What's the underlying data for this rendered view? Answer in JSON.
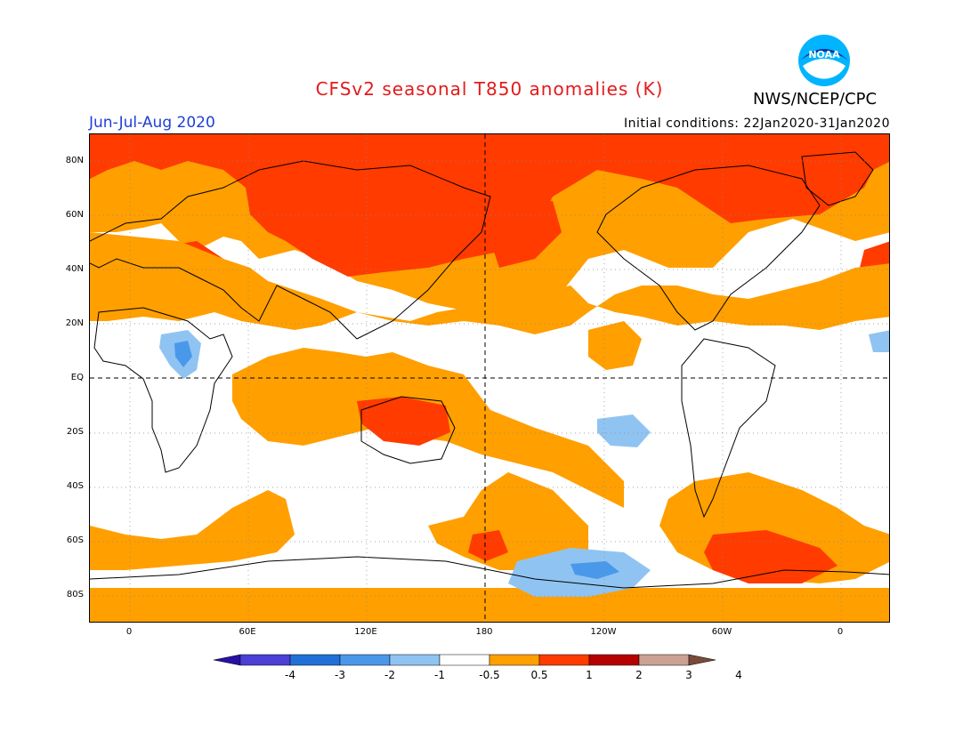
{
  "title": "CFSv2 seasonal T850 anomalies (K)",
  "season": "Jun-Jul-Aug 2020",
  "initial_conditions": "Initial conditions: 22Jan2020-31Jan2020",
  "agency": "NWS/NCEP/CPC",
  "logo_text": "NOAA",
  "lat_labels": [
    "80N",
    "60N",
    "40N",
    "20N",
    "EQ",
    "20S",
    "40S",
    "60S",
    "80S"
  ],
  "lon_labels": [
    "0",
    "60E",
    "120E",
    "180",
    "120W",
    "60W",
    "0"
  ],
  "colorbar": {
    "labels": [
      "-4",
      "-3",
      "-2",
      "-1",
      "-0.5",
      "0.5",
      "1",
      "2",
      "3",
      "4"
    ],
    "colors": [
      "#2a0fa6",
      "#4b3fd6",
      "#2070d8",
      "#4a98ea",
      "#8fc4f2",
      "#ffffff",
      "#ff9f00",
      "#ff3b00",
      "#b50000",
      "#c9a293",
      "#7a4a3a"
    ]
  },
  "colors": {
    "warm_05_1": "#ff9f00",
    "warm_1_2": "#ff3b00",
    "cool_05_1": "#8fc4f2",
    "cool_1_2": "#4a98ea",
    "title": "#e31a1c",
    "season": "#1f3fd6"
  }
}
